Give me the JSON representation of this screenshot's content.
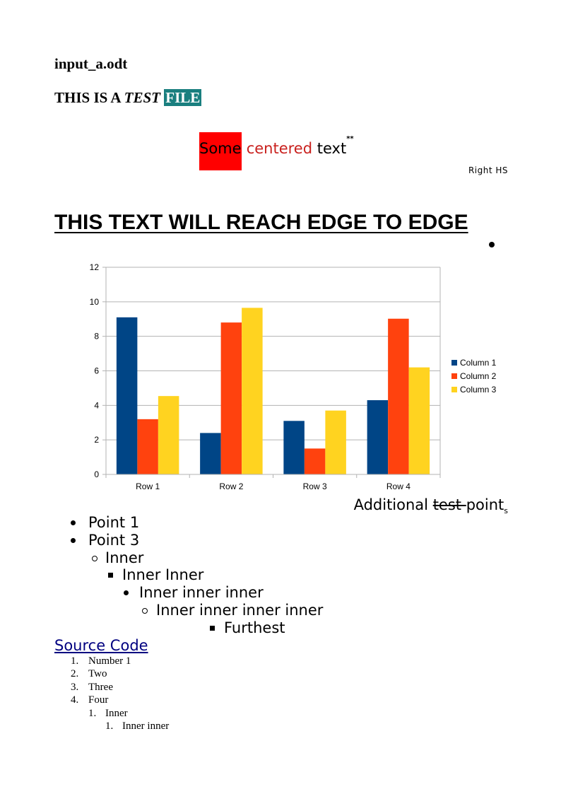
{
  "document": {
    "filename": "input_a.odt",
    "heading": {
      "part1": "THIS IS A ",
      "part2": "TEST",
      "part3": " ",
      "part4": "FILE"
    },
    "centered": {
      "some": "Some",
      "centered": "centered",
      "text": "text",
      "sup": "**"
    },
    "right_text": "Right HS",
    "edge_line": "THIS TEXT WILL REACH EDGE TO   EDGE",
    "additional": {
      "a": "Additional ",
      "strike": "test ",
      "b": "point",
      "sub": "s"
    },
    "bullets": [
      {
        "label": "Point 1",
        "level": 0
      },
      {
        "label": "Point 3",
        "level": 0
      },
      {
        "label": "Inner",
        "level": 1
      },
      {
        "label": "Inner Inner",
        "level": 2
      },
      {
        "label": "Inner inner inner",
        "level": 3
      },
      {
        "label": "Inner inner inner inner",
        "level": 4
      },
      {
        "label": "Furthest",
        "level": 5
      }
    ],
    "link": "Source Code",
    "numbered": [
      {
        "num": "1.",
        "label": "Number 1",
        "level": 0
      },
      {
        "num": "2.",
        "label": "Two",
        "level": 0
      },
      {
        "num": "3.",
        "label": "Three",
        "level": 0
      },
      {
        "num": "4.",
        "label": "Four",
        "level": 0
      },
      {
        "num": "1.",
        "label": "Inner",
        "level": 1
      },
      {
        "num": "1.",
        "label": "Inner inner",
        "level": 2
      }
    ]
  },
  "chart_data": {
    "type": "bar",
    "categories": [
      "Row 1",
      "Row 2",
      "Row 3",
      "Row 4"
    ],
    "series": [
      {
        "name": "Column 1",
        "values": [
          9.1,
          2.4,
          3.1,
          4.3
        ],
        "color": "#004586"
      },
      {
        "name": "Column 2",
        "values": [
          3.2,
          8.8,
          1.5,
          9.02
        ],
        "color": "#ff420e"
      },
      {
        "name": "Column 3",
        "values": [
          4.54,
          9.65,
          3.7,
          6.2
        ],
        "color": "#ffd320"
      }
    ],
    "ylim": [
      0,
      12
    ],
    "yticks": [
      "0",
      "2",
      "4",
      "6",
      "8",
      "10",
      "12"
    ],
    "grid": true,
    "legend": "right"
  }
}
